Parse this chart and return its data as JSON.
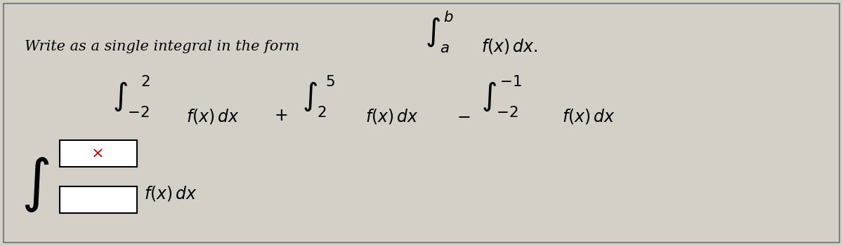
{
  "bg_color": "#d4d0c8",
  "border_color": "#808080",
  "text_color": "#000000",
  "red_color": "#cc0000",
  "line1_text": "Write as a single integral in the form",
  "line1_integral": "\\int_a^b f(x)\\,dx.",
  "expr": "\\int_{-2}^{2} f(x)\\,dx + \\int_{2}^{5} f(x)\\,dx - \\int_{-2}^{-1} f(x)\\,dx",
  "answer_integral": "\\int",
  "answer_fxdx": "f(x)\\,dx",
  "box_upper_label": "\\times",
  "figwidth": 12.0,
  "figheight": 3.51,
  "dpi": 100
}
